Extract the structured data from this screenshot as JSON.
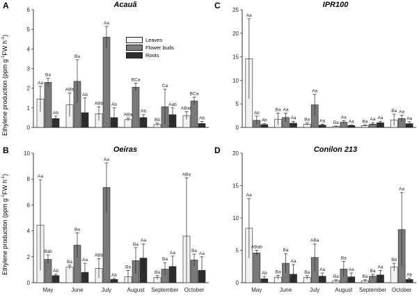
{
  "figure": {
    "ylabel_main": "Ethylene production (ppm g",
    "ylabel_sup": "-1",
    "ylabel_mid": "FW h",
    "ylabel_sup2": "-1",
    "ylabel_end": ")"
  },
  "legend": [
    {
      "label": "Leaves",
      "color": "#f2f2f2"
    },
    {
      "label": "Flower buds",
      "color": "#7a7a7a"
    },
    {
      "label": "Roots",
      "color": "#2e2e2e"
    }
  ],
  "chart_data": [
    {
      "panel": "A",
      "title": "Acauã",
      "type": "bar",
      "categories": [
        "May",
        "June",
        "July",
        "August",
        "September",
        "October"
      ],
      "ylim": [
        0,
        6
      ],
      "yticks": [
        0,
        1,
        2,
        3,
        4,
        5,
        6
      ],
      "series": [
        {
          "name": "Leaves",
          "values": [
            1.45,
            1.15,
            0.7,
            0.4,
            0.15,
            0.6
          ],
          "errors": [
            0.65,
            0.6,
            0.35,
            0.08,
            0.07,
            0.2
          ],
          "labels": [
            "Aa",
            "ABb",
            "ABb",
            "ABa",
            "Bb",
            "ABab"
          ]
        },
        {
          "name": "Flower buds",
          "values": [
            2.3,
            2.35,
            4.6,
            2.05,
            1.05,
            1.35
          ],
          "errors": [
            0.2,
            1.1,
            0.55,
            0.2,
            0.9,
            0.2
          ],
          "labels": [
            "Ba",
            "Ba",
            "Aa",
            "BCa",
            "Ca",
            "BCa"
          ]
        },
        {
          "name": "Roots",
          "values": [
            0.45,
            0.75,
            0.5,
            0.5,
            0.65,
            0.2
          ],
          "errors": [
            0.12,
            0.75,
            0.5,
            0.15,
            0.35,
            0.1
          ],
          "labels": [
            "Ab",
            "Ab",
            "Ab",
            "Ab",
            "Aab",
            "Ab"
          ]
        }
      ]
    },
    {
      "panel": "B",
      "title": "Oeiras",
      "type": "bar",
      "categories": [
        "May",
        "June",
        "July",
        "August",
        "September",
        "October"
      ],
      "ylim": [
        0,
        10
      ],
      "yticks": [
        0,
        2,
        4,
        6,
        8,
        10
      ],
      "series": [
        {
          "name": "Leaves",
          "values": [
            4.45,
            1.2,
            1.1,
            0.45,
            0.4,
            3.6
          ],
          "errors": [
            3.5,
            0.15,
            0.75,
            0.5,
            0.15,
            4.5
          ],
          "labels": [
            "Aa",
            "Ba",
            "ABb",
            "Ba",
            "Ba",
            "ABa"
          ]
        },
        {
          "name": "Flower buds",
          "values": [
            1.8,
            2.9,
            7.35,
            1.7,
            1.05,
            1.75
          ],
          "errors": [
            0.35,
            0.95,
            1.9,
            1.0,
            0.5,
            0.45
          ],
          "labels": [
            "Bab",
            "Ba",
            "Aa",
            "Ba",
            "Ba",
            "Ba"
          ]
        },
        {
          "name": "Roots",
          "values": [
            0.55,
            0.8,
            0.25,
            1.9,
            1.25,
            0.95
          ],
          "errors": [
            0.1,
            0.7,
            0.08,
            1.1,
            0.8,
            1.05
          ],
          "labels": [
            "Ab",
            "Aa",
            "Ab",
            "Aa",
            "Aa",
            "Aa"
          ]
        }
      ]
    },
    {
      "panel": "C",
      "title": "IPR100",
      "type": "bar",
      "categories": [
        "May",
        "June",
        "July",
        "August",
        "September",
        "October"
      ],
      "ylim": [
        0,
        25
      ],
      "yticks": [
        0,
        5,
        10,
        15,
        20,
        25
      ],
      "series": [
        {
          "name": "Leaves",
          "values": [
            14.6,
            1.75,
            0.7,
            0.2,
            0.4,
            1.6
          ],
          "errors": [
            8.5,
            1.3,
            0.25,
            0.1,
            0.1,
            1.2
          ],
          "labels": [
            "Aa",
            "Ba",
            "Ba",
            "Ba",
            "Ba",
            "Ba"
          ]
        },
        {
          "name": "Flower buds",
          "values": [
            1.5,
            2.1,
            4.8,
            1.1,
            0.7,
            1.9
          ],
          "errors": [
            0.9,
            0.9,
            2.2,
            0.3,
            0.3,
            0.7
          ],
          "labels": [
            "Ab",
            "Aa",
            "Aa",
            "Aa",
            "Aa",
            "Aa"
          ]
        },
        {
          "name": "Roots",
          "values": [
            0.6,
            0.9,
            0.5,
            0.4,
            1.0,
            0.8
          ],
          "errors": [
            0.2,
            0.4,
            0.2,
            0.1,
            0.3,
            0.4
          ],
          "labels": [
            "Ab",
            "Aa",
            "Aa",
            "Aa",
            "Aa",
            "Aa"
          ]
        }
      ]
    },
    {
      "panel": "D",
      "title": "Conilon 213",
      "type": "bar",
      "categories": [
        "May",
        "June",
        "July",
        "August",
        "September",
        "October"
      ],
      "ylim": [
        0,
        20
      ],
      "yticks": [
        0,
        5,
        10,
        15,
        20
      ],
      "series": [
        {
          "name": "Leaves",
          "values": [
            8.4,
            0.85,
            0.8,
            0.3,
            0.3,
            2.4
          ],
          "errors": [
            4.6,
            0.3,
            0.3,
            0.15,
            0.15,
            0.6
          ],
          "labels": [
            "Aa",
            "Ba",
            "Ba",
            "Ba",
            "Ba",
            "Bb"
          ]
        },
        {
          "name": "Flower buds",
          "values": [
            4.6,
            3.0,
            3.9,
            2.1,
            1.0,
            8.2
          ],
          "errors": [
            0.4,
            1.5,
            2.1,
            1.2,
            0.3,
            5.7
          ],
          "labels": [
            "ABab",
            "Ba",
            "ABa",
            "Ba",
            "Ba",
            "Aa"
          ]
        },
        {
          "name": "Roots",
          "values": [
            0.6,
            1.3,
            1.0,
            0.9,
            1.2,
            0.5
          ],
          "errors": [
            0.35,
            1.5,
            0.5,
            0.6,
            0.7,
            0.2
          ],
          "labels": [
            "Ab",
            "Aa",
            "Aa",
            "Aa",
            "Aa",
            "Ab"
          ]
        }
      ]
    }
  ]
}
